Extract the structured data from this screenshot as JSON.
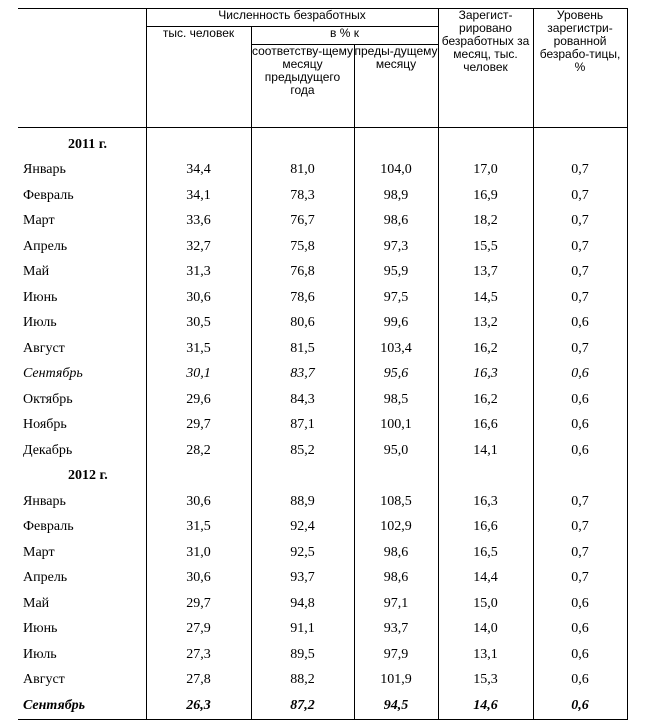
{
  "header": {
    "group_title": "Численность безработных",
    "thousand": "тыс. человек",
    "pct_group": "в % к",
    "pct_prev_year": "соответству-щему месяцу предыдущего года",
    "pct_prev_month": "преды-дущему месяцу",
    "registered": "Зарегист-рировано безработных за месяц, тыс. человек",
    "level": "Уровень зарегистри-рованной безрабо-тицы, %"
  },
  "years": {
    "y2011": "2011 г.",
    "y2012": "2012 г."
  },
  "rows2011": [
    {
      "m": "Январь",
      "a": "34,4",
      "b": "81,0",
      "c": "104,0",
      "d": "17,0",
      "e": "0,7"
    },
    {
      "m": "Февраль",
      "a": "34,1",
      "b": "78,3",
      "c": "98,9",
      "d": "16,9",
      "e": "0,7"
    },
    {
      "m": "Март",
      "a": "33,6",
      "b": "76,7",
      "c": "98,6",
      "d": "18,2",
      "e": "0,7"
    },
    {
      "m": "Апрель",
      "a": "32,7",
      "b": "75,8",
      "c": "97,3",
      "d": "15,5",
      "e": "0,7"
    },
    {
      "m": "Май",
      "a": "31,3",
      "b": "76,8",
      "c": "95,9",
      "d": "13,7",
      "e": "0,7"
    },
    {
      "m": "Июнь",
      "a": "30,6",
      "b": "78,6",
      "c": "97,5",
      "d": "14,5",
      "e": "0,7"
    },
    {
      "m": "Июль",
      "a": "30,5",
      "b": "80,6",
      "c": "99,6",
      "d": "13,2",
      "e": "0,6"
    },
    {
      "m": "Август",
      "a": "31,5",
      "b": "81,5",
      "c": "103,4",
      "d": "16,2",
      "e": "0,7"
    },
    {
      "m": "Сентябрь",
      "a": "30,1",
      "b": "83,7",
      "c": "95,6",
      "d": "16,3",
      "e": "0,6"
    },
    {
      "m": "Октябрь",
      "a": "29,6",
      "b": "84,3",
      "c": "98,5",
      "d": "16,2",
      "e": "0,6"
    },
    {
      "m": "Ноябрь",
      "a": "29,7",
      "b": "87,1",
      "c": "100,1",
      "d": "16,6",
      "e": "0,6"
    },
    {
      "m": "Декабрь",
      "a": "28,2",
      "b": "85,2",
      "c": "95,0",
      "d": "14,1",
      "e": "0,6"
    }
  ],
  "rows2012": [
    {
      "m": "Январь",
      "a": "30,6",
      "b": "88,9",
      "c": "108,5",
      "d": "16,3",
      "e": "0,7"
    },
    {
      "m": "Февраль",
      "a": "31,5",
      "b": "92,4",
      "c": "102,9",
      "d": "16,6",
      "e": "0,7"
    },
    {
      "m": "Март",
      "a": "31,0",
      "b": "92,5",
      "c": "98,6",
      "d": "16,5",
      "e": "0,7"
    },
    {
      "m": "Апрель",
      "a": "30,6",
      "b": "93,7",
      "c": "98,6",
      "d": "14,4",
      "e": "0,7"
    },
    {
      "m": "Май",
      "a": "29,7",
      "b": "94,8",
      "c": "97,1",
      "d": "15,0",
      "e": "0,6"
    },
    {
      "m": "Июнь",
      "a": "27,9",
      "b": "91,1",
      "c": "93,7",
      "d": "14,0",
      "e": "0,6"
    },
    {
      "m": "Июль",
      "a": "27,3",
      "b": "89,5",
      "c": "97,9",
      "d": "13,1",
      "e": "0,6"
    },
    {
      "m": "Август",
      "a": "27,8",
      "b": "88,2",
      "c": "101,9",
      "d": "15,3",
      "e": "0,6"
    },
    {
      "m": "Сентябрь",
      "a": "26,3",
      "b": "87,2",
      "c": "94,5",
      "d": "14,6",
      "e": "0,6"
    }
  ]
}
